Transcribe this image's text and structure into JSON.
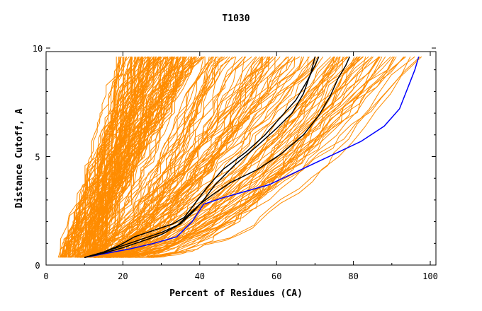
{
  "chart_data": {
    "type": "line",
    "title": "T1030",
    "xlabel": "Percent of Residues (CA)",
    "ylabel": "Distance Cutoff, A",
    "xlim": [
      0,
      100
    ],
    "ylim": [
      0,
      10
    ],
    "xticks": [
      0,
      20,
      40,
      60,
      80,
      100
    ],
    "yticks": [
      0,
      5,
      10
    ],
    "grid": false,
    "legend": "none",
    "colors": {
      "background": "#ffffff",
      "axes": "#000000",
      "models": "#ff8c00",
      "highlight": "#000000",
      "reference": "#0000ff"
    },
    "background_models": {
      "color": "#ff8c00",
      "count": 240,
      "description_range": "many model curves spanning from about 3% to 98% residues"
    },
    "series": [
      {
        "color": "#0000ff",
        "x": [
          10,
          16,
          22,
          28,
          34,
          38,
          41,
          46,
          52,
          58,
          64,
          70,
          76,
          82,
          88,
          92,
          94,
          96,
          97
        ],
        "y": [
          0.35,
          0.55,
          0.75,
          1.0,
          1.3,
          2.0,
          2.8,
          3.1,
          3.4,
          3.7,
          4.2,
          4.7,
          5.2,
          5.7,
          6.4,
          7.2,
          8.1,
          9.0,
          9.6
        ]
      },
      {
        "color": "#000000",
        "x": [
          10,
          15,
          19,
          23,
          28,
          33,
          36,
          39,
          42,
          46,
          52,
          57,
          61,
          65,
          68,
          70,
          71
        ],
        "y": [
          0.35,
          0.6,
          0.9,
          1.3,
          1.6,
          1.9,
          2.2,
          2.9,
          3.6,
          4.4,
          5.2,
          6.0,
          6.8,
          7.6,
          8.5,
          9.2,
          9.6
        ]
      },
      {
        "color": "#000000",
        "x": [
          10,
          15,
          20,
          25,
          30,
          35,
          38,
          41,
          44,
          49,
          55,
          60,
          64,
          67,
          69,
          70
        ],
        "y": [
          0.35,
          0.6,
          0.9,
          1.2,
          1.5,
          1.9,
          2.4,
          3.0,
          3.7,
          4.6,
          5.5,
          6.3,
          7.0,
          7.9,
          8.9,
          9.6
        ]
      },
      {
        "color": "#000000",
        "x": [
          10,
          15,
          20,
          25,
          30,
          34,
          37,
          40,
          43,
          48,
          55,
          61,
          67,
          71,
          74,
          76,
          78,
          79
        ],
        "y": [
          0.35,
          0.55,
          0.8,
          1.1,
          1.4,
          1.8,
          2.3,
          2.8,
          3.2,
          3.8,
          4.4,
          5.1,
          6.0,
          6.9,
          7.8,
          8.6,
          9.2,
          9.6
        ]
      }
    ]
  }
}
